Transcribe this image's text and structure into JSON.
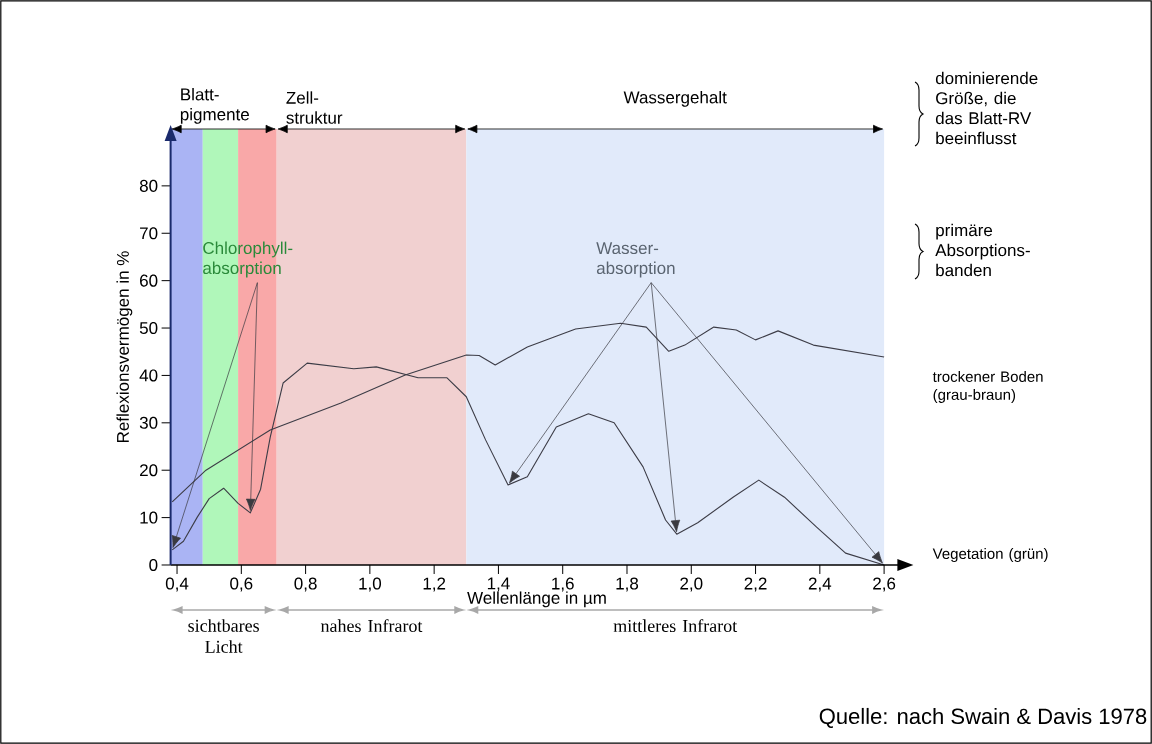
{
  "chart_data": {
    "type": "line",
    "xlabel": "Wellenlänge in µm",
    "ylabel": "Reflexionsvermögen in %",
    "xlim": [
      0.38,
      2.66
    ],
    "ylim": [
      0,
      92
    ],
    "xticks": [
      {
        "value": 0.4,
        "label": "0,4"
      },
      {
        "value": 0.6,
        "label": "0,6"
      },
      {
        "value": 0.8,
        "label": "0,8"
      },
      {
        "value": 1.0,
        "label": "1,0"
      },
      {
        "value": 1.2,
        "label": "1,2"
      },
      {
        "value": 1.4,
        "label": "1,4"
      },
      {
        "value": 1.6,
        "label": "1,6"
      },
      {
        "value": 1.8,
        "label": "1,8"
      },
      {
        "value": 2.0,
        "label": "2,0"
      },
      {
        "value": 2.2,
        "label": "2,2"
      },
      {
        "value": 2.4,
        "label": "2,4"
      },
      {
        "value": 2.6,
        "label": "2,6"
      }
    ],
    "yticks": [
      0,
      10,
      20,
      30,
      40,
      50,
      60,
      70,
      80
    ],
    "marker": "none",
    "series": [
      {
        "name": "trockener Boden (grau-braun)",
        "color": "#3c3c46",
        "x": [
          0.385,
          0.49,
          0.69,
          0.91,
          1.11,
          1.3,
          1.34,
          1.39,
          1.49,
          1.64,
          1.78,
          1.86,
          1.93,
          1.98,
          2.07,
          2.14,
          2.2,
          2.27,
          2.38,
          2.6
        ],
        "values": [
          13.3,
          20,
          28.5,
          34.2,
          40.1,
          44.3,
          44.2,
          42.2,
          46,
          49.8,
          51,
          50.2,
          45.1,
          46.4,
          50.2,
          49.6,
          47.5,
          49.4,
          46.4,
          43.9
        ]
      },
      {
        "name": "Vegetation (grün)",
        "color": "#3c3c46",
        "x": [
          0.385,
          0.42,
          0.463,
          0.5,
          0.545,
          0.59,
          0.628,
          0.66,
          0.69,
          0.73,
          0.805,
          0.95,
          1.02,
          1.15,
          1.24,
          1.3,
          1.36,
          1.43,
          1.49,
          1.58,
          1.68,
          1.76,
          1.85,
          1.92,
          1.955,
          2.02,
          2.13,
          2.21,
          2.29,
          2.39,
          2.48,
          2.6
        ],
        "values": [
          3.2,
          5,
          10.1,
          14,
          16.2,
          13,
          11,
          16,
          27,
          38.4,
          42.6,
          41.4,
          41.8,
          39.5,
          39.5,
          35.5,
          26.4,
          16.9,
          18.6,
          29.1,
          31.9,
          30,
          20.7,
          9.5,
          6.5,
          8.9,
          14.3,
          17.9,
          14.3,
          8,
          2.5,
          0
        ]
      }
    ],
    "bands": [
      {
        "axis": "x",
        "from": 0.38,
        "to": 0.48,
        "color": "#aab4f4"
      },
      {
        "axis": "x",
        "from": 0.48,
        "to": 0.59,
        "color": "#b0f7ba"
      },
      {
        "axis": "x",
        "from": 0.59,
        "to": 0.71,
        "color": "#f9a8a8"
      },
      {
        "axis": "x",
        "from": 0.71,
        "to": 1.3,
        "color": "#f1d0d0"
      },
      {
        "axis": "x",
        "from": 1.3,
        "to": 2.6,
        "color": "#e1eafa"
      }
    ],
    "annotations": [
      "Blatt-pigmente",
      "Zell-struktur",
      "Wassergehalt",
      "dominierende Größe, die das Blatt-RV beeinflusst",
      "primäre Absorptions-banden",
      "Chlorophyll-absorption",
      "Wasser-absorption",
      "sichtbares Licht",
      "nahes Infrarot",
      "mittleres Infrarot",
      "Quelle: nach Swain & Davis 1978"
    ]
  }
}
